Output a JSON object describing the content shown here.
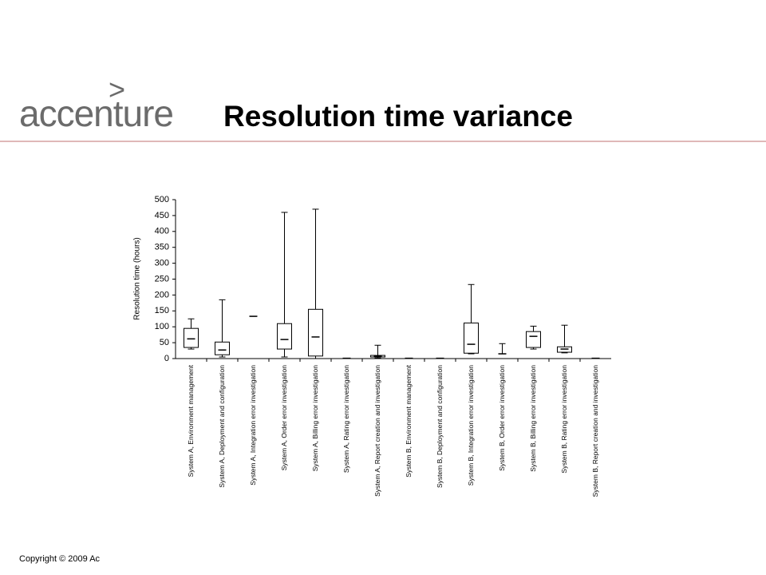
{
  "logo": {
    "mark": ">",
    "name": "accenture"
  },
  "footer": "Copyright © 2009 Ac",
  "chart_data": {
    "type": "box",
    "title": "Resolution time variance",
    "y_label": "Resolution time (hours)",
    "categories": [
      "System A, Environment management",
      "System A, Deployment and configuration",
      "System A, Integration error investigation",
      "System A, Order error investigation",
      "System A, Billing error investigation",
      "System A, Rating error investigation",
      "System A, Report creation and investigation",
      "System B, Environment management",
      "System B, Deployment and configuration",
      "System B, Integration error investigation",
      "System B, Order error investigation",
      "System B, Billing error investigation",
      "System B, Rating error investigation",
      "System B, Report creation and investigation"
    ],
    "boxes": [
      {
        "min": 30,
        "q1": 35,
        "median": 62,
        "q3": 95,
        "max": 125
      },
      {
        "min": 5,
        "q1": 12,
        "median": 27,
        "q3": 52,
        "max": 185
      },
      {
        "min": 133,
        "q1": 133,
        "median": 133,
        "q3": 133,
        "max": 133
      },
      {
        "min": 5,
        "q1": 30,
        "median": 60,
        "q3": 110,
        "max": 460
      },
      {
        "min": 0,
        "q1": 8,
        "median": 68,
        "q3": 155,
        "max": 470
      },
      {
        "min": 1,
        "q1": 1,
        "median": 1,
        "q3": 1,
        "max": 1
      },
      {
        "min": 2,
        "q1": 5,
        "median": 8,
        "q3": 10,
        "max": 42
      },
      {
        "min": 1,
        "q1": 1,
        "median": 1,
        "q3": 1,
        "max": 1
      },
      {
        "min": 1,
        "q1": 1,
        "median": 1,
        "q3": 1,
        "max": 1
      },
      {
        "min": 15,
        "q1": 17,
        "median": 45,
        "q3": 112,
        "max": 233
      },
      {
        "min": 15,
        "q1": 15,
        "median": 15,
        "q3": 15,
        "max": 47
      },
      {
        "min": 30,
        "q1": 35,
        "median": 70,
        "q3": 85,
        "max": 102
      },
      {
        "min": 18,
        "q1": 20,
        "median": 30,
        "q3": 37,
        "max": 105
      },
      {
        "min": 1,
        "q1": 1,
        "median": 1,
        "q3": 1,
        "max": 1
      }
    ],
    "color": "#000000",
    "ylim": [
      0,
      500
    ],
    "yticks": [
      0,
      50,
      100,
      150,
      200,
      250,
      300,
      350,
      400,
      450,
      500
    ]
  }
}
